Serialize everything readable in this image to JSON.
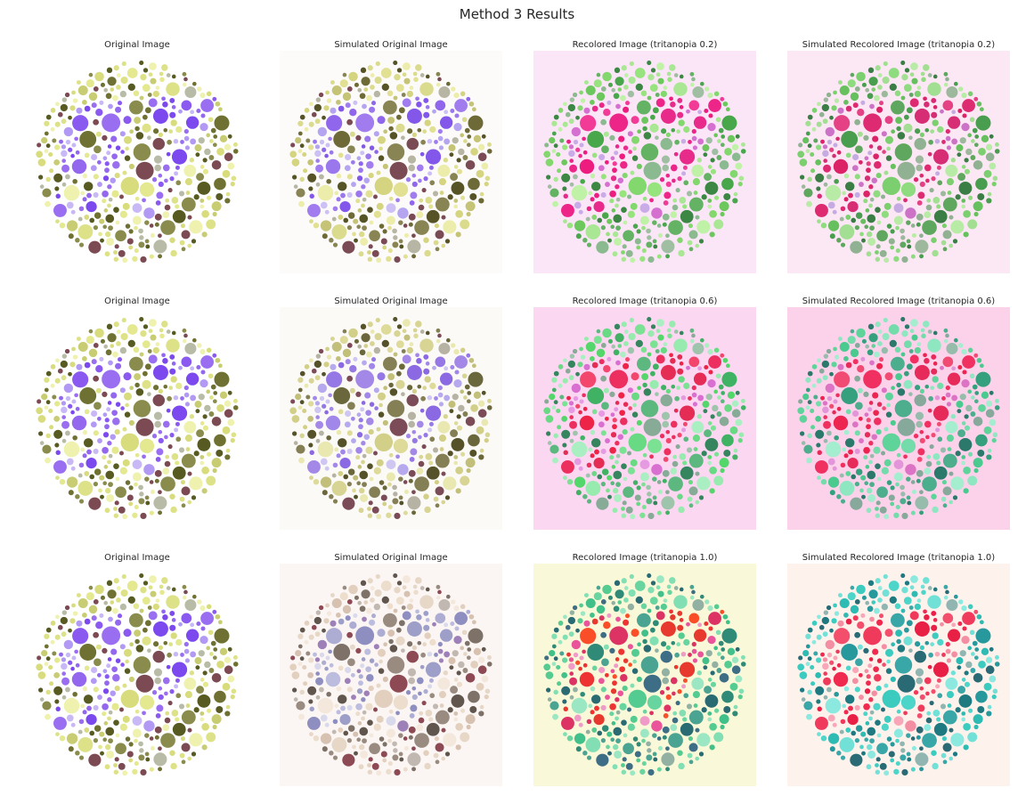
{
  "figure": {
    "title": "Method 3 Results",
    "digit_text": "97",
    "rows": [
      {
        "tritanopia_severity": "0.2",
        "cells": [
          {
            "title": "Original Image",
            "palette": {
              "bg": "#ffffff",
              "ground": [
                "#e4e88f",
                "#d8dc7d",
                "#eff2ae",
                "#c8cc72",
                "#6f7132",
                "#575a21",
                "#8a8c4e",
                "#dde288",
                "#b8bba6",
                "#7c4a52"
              ],
              "figure": [
                "#9468ee",
                "#8a5af0",
                "#7c49ee",
                "#c9b8f6",
                "#b29af4",
                "#9a6ef0"
              ]
            }
          },
          {
            "title": "Simulated Original Image",
            "palette": {
              "bg": "#fdfbfa",
              "ground": [
                "#e1e093",
                "#d5d481",
                "#ecedab",
                "#c5c375",
                "#6d6a37",
                "#565426",
                "#888453",
                "#dadb8c",
                "#b7b5a3",
                "#7a4b55"
              ],
              "figure": [
                "#9b77ee",
                "#8f66ec",
                "#8257ea",
                "#ccc0f4",
                "#b5a4f0",
                "#a07cee"
              ]
            }
          },
          {
            "title": "Recolored Image (tritanopia 0.2)",
            "palette": {
              "bg": "#fbe6f8",
              "ground": [
                "#97e37e",
                "#82d76d",
                "#bff2a7",
                "#6cc75d",
                "#48a64b",
                "#3b8743",
                "#64b263",
                "#a9e794",
                "#a0bfa2",
                "#8cba90"
              ],
              "figure": [
                "#ed1d80",
                "#f13b96",
                "#e82a8a",
                "#c9abe8",
                "#d56fd0",
                "#ee2589"
              ]
            }
          },
          {
            "title": "Simulated Recolored Image (tritanopia 0.2)",
            "palette": {
              "bg": "#fbe8f4",
              "ground": [
                "#8fdb7f",
                "#7bcf6e",
                "#b8eba5",
                "#66c05d",
                "#489d4f",
                "#3b7e45",
                "#5fa75f",
                "#a2df92",
                "#9db89d",
                "#90b292"
              ],
              "figure": [
                "#dc2368",
                "#e54285",
                "#d62d74",
                "#c6abe2",
                "#cc73c7",
                "#de2a70"
              ]
            }
          }
        ]
      },
      {
        "tritanopia_severity": "0.6",
        "cells": [
          {
            "title": "Original Image",
            "palette": {
              "bg": "#ffffff",
              "ground": [
                "#e4e88f",
                "#d8dc7d",
                "#eff2ae",
                "#c8cc72",
                "#6f7132",
                "#575a21",
                "#8a8c4e",
                "#dde288",
                "#b8bba6",
                "#7c4a52"
              ],
              "figure": [
                "#9468ee",
                "#8a5af0",
                "#7c49ee",
                "#c9b8f6",
                "#b29af4",
                "#9a6ef0"
              ]
            }
          },
          {
            "title": "Simulated Original Image",
            "palette": {
              "bg": "#fcfaf7",
              "ground": [
                "#dedb9a",
                "#d2cf88",
                "#e9e8b1",
                "#c2bf7b",
                "#6b673c",
                "#55522a",
                "#857f55",
                "#d7d494",
                "#b6b3a4",
                "#7b4c58"
              ],
              "figure": [
                "#a287ea",
                "#9577e6",
                "#8a69e2",
                "#cfc6f2",
                "#b7a9ee",
                "#a488e8"
              ]
            }
          },
          {
            "title": "Recolored Image (tritanopia 0.6)",
            "palette": {
              "bg": "#fbd7f1",
              "ground": [
                "#7be294",
                "#67da83",
                "#aaefc1",
                "#54d76a",
                "#40b264",
                "#35855e",
                "#5db87f",
                "#98ebaf",
                "#9ec4ac",
                "#87ab97"
              ],
              "figure": [
                "#ee2348",
                "#f2466d",
                "#e52c55",
                "#e59ae2",
                "#d96fd0",
                "#ec2f5e"
              ]
            }
          },
          {
            "title": "Simulated Recolored Image (tritanopia 0.6)",
            "palette": {
              "bg": "#fcd2ea",
              "ground": [
                "#73dcaa",
                "#5fd49a",
                "#a4edcf",
                "#4bca8f",
                "#34a07d",
                "#2b796b",
                "#4cae8d",
                "#8ee7c0",
                "#97bcac",
                "#86a99b"
              ],
              "figure": [
                "#ed2450",
                "#f24b73",
                "#e62a5a",
                "#e295d8",
                "#dc73c5",
                "#ef3060"
              ]
            }
          }
        ]
      },
      {
        "tritanopia_severity": "1.0",
        "cells": [
          {
            "title": "Original Image",
            "palette": {
              "bg": "#ffffff",
              "ground": [
                "#e4e88f",
                "#d8dc7d",
                "#eff2ae",
                "#c8cc72",
                "#6f7132",
                "#575a21",
                "#8a8c4e",
                "#dde288",
                "#b8bba6",
                "#7c4a52"
              ],
              "figure": [
                "#9468ee",
                "#8a5af0",
                "#7c49ee",
                "#c9b8f6",
                "#b29af4",
                "#9a6ef0"
              ]
            }
          },
          {
            "title": "Simulated Original Image",
            "palette": {
              "bg": "#fbf6f3",
              "ground": [
                "#ecddcc",
                "#e2cfbd",
                "#f3e8db",
                "#d7c2b1",
                "#7d7168",
                "#61564e",
                "#998b80",
                "#e7d7c7",
                "#c1b9b1",
                "#8d4a55"
              ],
              "figure": [
                "#bcbcde",
                "#adadd4",
                "#9e9fc9",
                "#d9d9ec",
                "#9d80b8",
                "#8e8fc0"
              ]
            }
          },
          {
            "title": "Recolored Image (tritanopia 1.0)",
            "palette": {
              "bg": "#f9f8d8",
              "ground": [
                "#68d5a0",
                "#54cb91",
                "#9be7c3",
                "#41c189",
                "#2f8b78",
                "#296a73",
                "#4ba392",
                "#82dfb4",
                "#92b1a2",
                "#3d6e85"
              ],
              "figure": [
                "#ee3333",
                "#f94e28",
                "#e8392e",
                "#f09ac8",
                "#e9549b",
                "#dc3364"
              ]
            }
          },
          {
            "title": "Simulated Recolored Image (tritanopia 1.0)",
            "palette": {
              "bg": "#fdf2ec",
              "ground": [
                "#4ed5c9",
                "#3bcbbf",
                "#8be9df",
                "#2dbbb3",
                "#27989b",
                "#1e7a80",
                "#39a7a7",
                "#71e1d7",
                "#91b5b1",
                "#296a74"
              ],
              "figure": [
                "#ef2a4e",
                "#f34f6d",
                "#e82046",
                "#f9a6b8",
                "#f48fa3",
                "#f03a5c"
              ]
            }
          }
        ]
      }
    ]
  },
  "chart_data": {
    "type": "table",
    "title": "Method 3 Results",
    "grid": {
      "rows": 3,
      "cols": 4
    },
    "columns": [
      "Original Image",
      "Simulated Original Image",
      "Recolored Image",
      "Simulated Recolored Image"
    ],
    "rows": [
      {
        "tritanopia_severity": 0.2,
        "cells": [
          "Original Image",
          "Simulated Original Image",
          "Recolored Image (tritanopia 0.2)",
          "Simulated Recolored Image (tritanopia 0.2)"
        ]
      },
      {
        "tritanopia_severity": 0.6,
        "cells": [
          "Original Image",
          "Simulated Original Image",
          "Recolored Image (tritanopia 0.6)",
          "Simulated Recolored Image (tritanopia 0.6)"
        ]
      },
      {
        "tritanopia_severity": 1.0,
        "cells": [
          "Original Image",
          "Simulated Original Image",
          "Recolored Image (tritanopia 1.0)",
          "Simulated Recolored Image (tritanopia 1.0)"
        ]
      }
    ],
    "hidden_number": "97",
    "legend_position": "none",
    "grid_lines": false
  }
}
